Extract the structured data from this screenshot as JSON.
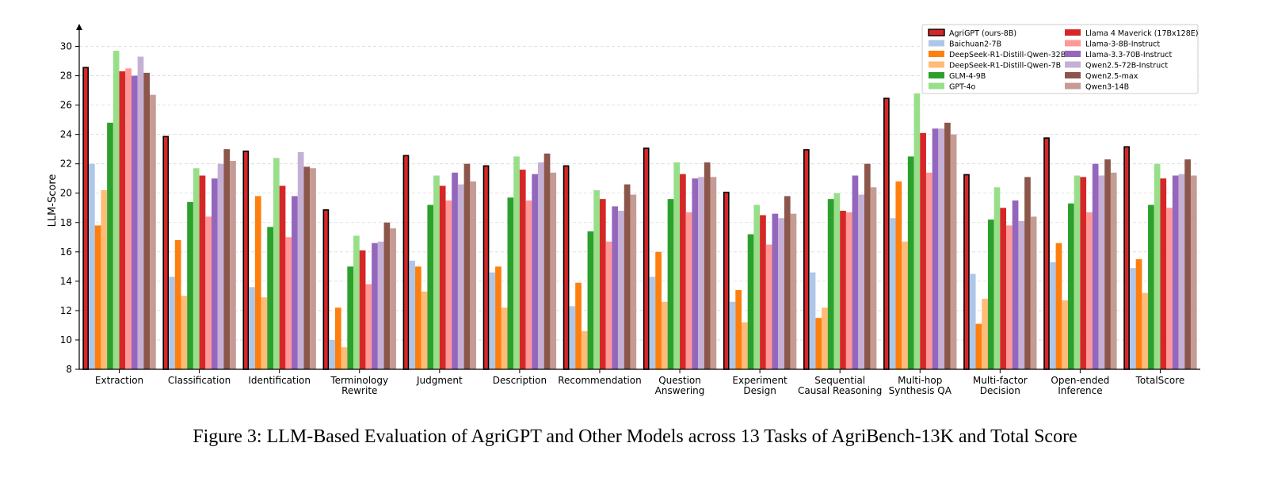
{
  "caption": "Figure 3: LLM-Based Evaluation of AgriGPT and Other Models across 13 Tasks of AgriBench-13K and Total Score",
  "chart_data": {
    "type": "bar",
    "title": "",
    "xlabel": "",
    "ylabel": "LLM-Score",
    "ylim": [
      8,
      31
    ],
    "yticks": [
      8,
      10,
      12,
      14,
      16,
      18,
      20,
      22,
      24,
      26,
      28,
      30
    ],
    "grid": "horizontal dashed",
    "legend_position": "top-right",
    "categories": [
      [
        "Extraction"
      ],
      [
        "Classification"
      ],
      [
        "Identification"
      ],
      [
        "Terminology",
        "Rewrite"
      ],
      [
        "Judgment"
      ],
      [
        "Description"
      ],
      [
        "Recommendation"
      ],
      [
        "Question",
        "Answering"
      ],
      [
        "Experiment",
        "Design"
      ],
      [
        "Sequential",
        "Causal Reasoning"
      ],
      [
        "Multi-hop",
        "Synthesis QA"
      ],
      [
        "Multi-factor",
        "Decision"
      ],
      [
        "Open-ended",
        "Inference"
      ],
      [
        "TotalScore"
      ]
    ],
    "series": [
      {
        "name": "AgriGPT (ours-8B)",
        "color": "#d62728",
        "highlight": true,
        "values": [
          28.6,
          23.9,
          22.9,
          18.9,
          22.6,
          21.9,
          21.9,
          23.1,
          20.1,
          23.0,
          26.5,
          21.3,
          23.8,
          23.2
        ]
      },
      {
        "name": "Baichuan2-7B",
        "color": "#aec7e8",
        "values": [
          22.0,
          14.3,
          13.6,
          10.0,
          15.4,
          14.6,
          12.3,
          14.3,
          12.6,
          14.6,
          18.3,
          14.5,
          15.3,
          14.9
        ]
      },
      {
        "name": "DeepSeek-R1-Distill-Qwen-32B",
        "color": "#ff7f0e",
        "values": [
          17.8,
          16.8,
          19.8,
          12.2,
          15.0,
          15.0,
          13.9,
          16.0,
          13.4,
          11.5,
          20.8,
          11.1,
          16.6,
          15.5
        ]
      },
      {
        "name": "DeepSeek-R1-Distill-Qwen-7B",
        "color": "#ffbb78",
        "values": [
          20.2,
          13.0,
          12.9,
          9.5,
          13.3,
          12.2,
          10.6,
          12.6,
          11.2,
          12.2,
          16.7,
          12.8,
          12.7,
          13.2
        ]
      },
      {
        "name": "GLM-4-9B",
        "color": "#2ca02c",
        "values": [
          24.8,
          19.4,
          17.7,
          15.0,
          19.2,
          19.7,
          17.4,
          19.6,
          17.2,
          19.6,
          22.5,
          18.2,
          19.3,
          19.2
        ]
      },
      {
        "name": "GPT-4o",
        "color": "#98df8a",
        "values": [
          29.7,
          21.7,
          22.4,
          17.1,
          21.2,
          22.5,
          20.2,
          22.1,
          19.2,
          20.0,
          26.8,
          20.4,
          21.2,
          22.0
        ]
      },
      {
        "name": "Llama 4 Maverick (17Bx128E)",
        "color": "#d62728",
        "values": [
          28.3,
          21.2,
          20.5,
          16.1,
          20.5,
          21.6,
          19.6,
          21.3,
          18.5,
          18.8,
          24.1,
          19.0,
          21.1,
          21.0
        ]
      },
      {
        "name": "Llama-3-8B-Instruct",
        "color": "#ff9896",
        "values": [
          28.5,
          18.4,
          17.0,
          13.8,
          19.5,
          19.5,
          16.7,
          18.7,
          16.5,
          18.7,
          21.4,
          17.8,
          18.7,
          19.0
        ]
      },
      {
        "name": "Llama-3.3-70B-Instruct",
        "color": "#9467bd",
        "values": [
          28.0,
          21.0,
          19.8,
          16.6,
          21.4,
          21.3,
          19.1,
          21.0,
          18.6,
          21.2,
          24.4,
          19.5,
          22.0,
          21.2
        ]
      },
      {
        "name": "Qwen2.5-72B-Instruct",
        "color": "#c5b0d5",
        "values": [
          29.3,
          22.0,
          22.8,
          16.7,
          20.6,
          22.1,
          18.8,
          21.1,
          18.3,
          19.9,
          24.4,
          18.1,
          21.2,
          21.3
        ]
      },
      {
        "name": "Qwen2.5-max",
        "color": "#8c564b",
        "values": [
          28.2,
          23.0,
          21.8,
          18.0,
          22.0,
          22.7,
          20.6,
          22.1,
          19.8,
          22.0,
          24.8,
          21.1,
          22.3,
          22.3
        ]
      },
      {
        "name": "Qwen3-14B",
        "color": "#c49c94",
        "values": [
          26.7,
          22.2,
          21.7,
          17.6,
          20.8,
          21.4,
          19.9,
          21.1,
          18.6,
          20.4,
          24.0,
          18.4,
          21.4,
          21.2
        ]
      }
    ]
  }
}
